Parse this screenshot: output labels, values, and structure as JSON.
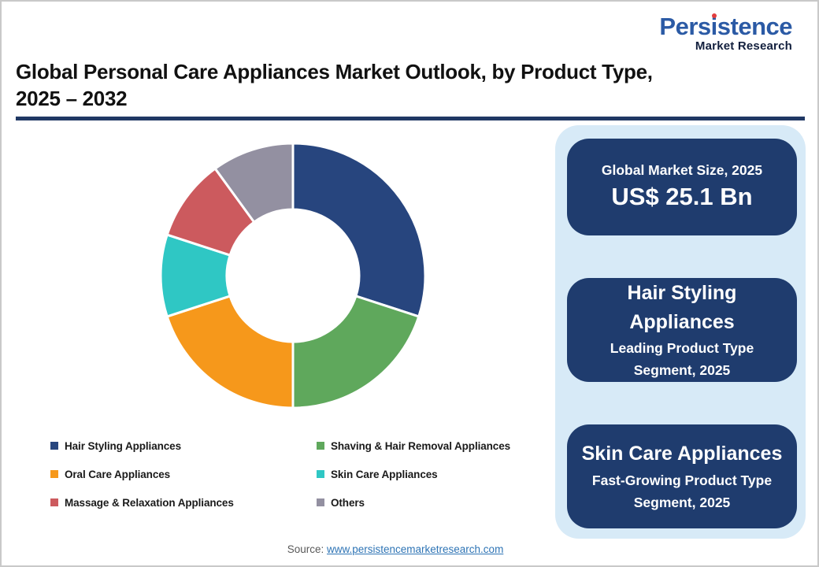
{
  "logo": {
    "brand": "Persistence",
    "subtitle": "Market Research",
    "brand_color": "#2B5AA5",
    "subtitle_color": "#121F3D",
    "dot_color": "#E23D3F"
  },
  "title": {
    "line1": "Global Personal Care Appliances Market Outlook, by Product Type,",
    "line2": "2025 – 2032"
  },
  "chart_data": {
    "type": "pie",
    "subtype": "donut",
    "title": "Global Personal Care Appliances Market Outlook, by Product Type, 2025 – 2032",
    "categories": [
      "Hair Styling Appliances",
      "Shaving & Hair Removal Appliances",
      "Oral Care Appliances",
      "Skin Care Appliances",
      "Massage & Relaxation Appliances",
      "Others"
    ],
    "values": [
      30,
      20,
      20,
      10,
      10,
      10
    ],
    "unit": "percent share, estimated from arc angles",
    "colors": [
      "#27457E",
      "#5FA85C",
      "#F6981B",
      "#2FC7C4",
      "#CC5A5E",
      "#9390A1"
    ],
    "start_angle_deg": 0,
    "direction": "clockwise",
    "inner_radius_ratio": 0.5,
    "slice_gap_color": "#ffffff",
    "legend_position": "bottom-left",
    "data_labels": false
  },
  "panel": {
    "background": "#D7EAF7",
    "card_background": "#1F3C6E",
    "cards": [
      {
        "title": "Global Market Size, 2025",
        "value": "US$ 25.1 Bn"
      },
      {
        "title": "Hair Styling Appliances",
        "subtitle": "Leading Product Type Segment, 2025"
      },
      {
        "title": "Skin Care Appliances",
        "subtitle": "Fast-Growing Product Type  Segment, 2025"
      }
    ]
  },
  "source": {
    "label": "Source:",
    "link": "www.persistencemarketresearch.com"
  }
}
